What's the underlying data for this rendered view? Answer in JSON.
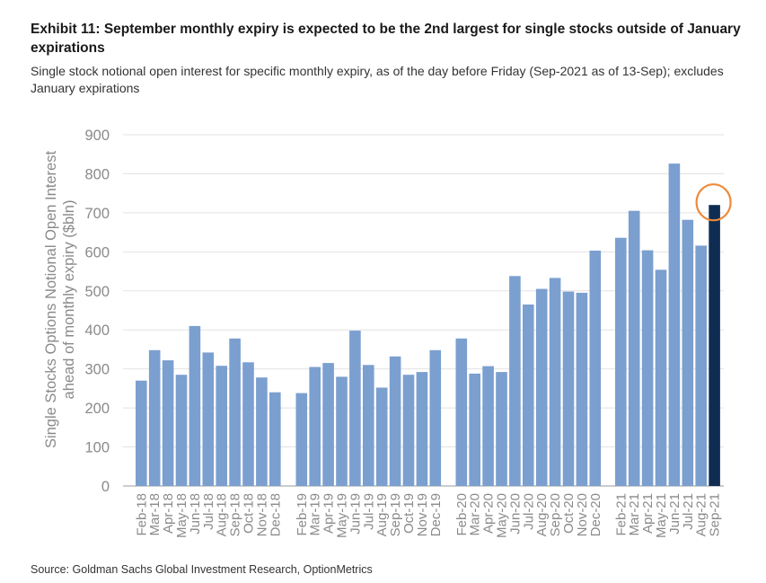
{
  "header": {
    "title": "Exhibit 11: September monthly expiry is expected to be the 2nd largest for single stocks outside of January expirations",
    "subtitle": "Single stock notional open interest for specific monthly expiry, as of the day before Friday (Sep-2021 as of 13-Sep); excludes January expirations"
  },
  "footer": {
    "source": "Source: Goldman Sachs Global Investment Research, OptionMetrics"
  },
  "colors": {
    "bar": "#7b9fcf",
    "highlight_bar": "#0f2d52",
    "circle": "#ee8a3a",
    "grid": "#e2e2e2",
    "axis": "#9a9a9a"
  },
  "chart_data": {
    "type": "bar",
    "title": "",
    "ylabel_lines": [
      "Single Stocks Options Notional Open Interest",
      "ahead of monthly expiry ($bln)"
    ],
    "ylim": [
      0,
      900
    ],
    "yticks": [
      0,
      100,
      200,
      300,
      400,
      500,
      600,
      700,
      800,
      900
    ],
    "grid": true,
    "highlight": "Sep-21",
    "groups": [
      {
        "categories": [
          "Feb-18",
          "Mar-18",
          "Apr-18",
          "May-18",
          "Jun-18",
          "Jul-18",
          "Aug-18",
          "Sep-18",
          "Oct-18",
          "Nov-18",
          "Dec-18"
        ],
        "values": [
          270,
          348,
          322,
          285,
          410,
          342,
          308,
          378,
          317,
          278,
          240
        ]
      },
      {
        "categories": [
          "Feb-19",
          "Mar-19",
          "Apr-19",
          "May-19",
          "Jun-19",
          "Jul-19",
          "Aug-19",
          "Sep-19",
          "Oct-19",
          "Nov-19",
          "Dec-19"
        ],
        "values": [
          238,
          305,
          315,
          280,
          398,
          310,
          252,
          332,
          285,
          292,
          348
        ]
      },
      {
        "categories": [
          "Feb-20",
          "Mar-20",
          "Apr-20",
          "May-20",
          "Jun-20",
          "Jul-20",
          "Aug-20",
          "Sep-20",
          "Oct-20",
          "Nov-20",
          "Dec-20"
        ],
        "values": [
          378,
          288,
          307,
          292,
          538,
          465,
          505,
          533,
          498,
          495,
          603
        ]
      },
      {
        "categories": [
          "Feb-21",
          "Mar-21",
          "Apr-21",
          "May-21",
          "Jun-21",
          "Jul-21",
          "Aug-21",
          "Sep-21"
        ],
        "values": [
          636,
          705,
          604,
          554,
          826,
          682,
          616,
          720
        ]
      }
    ]
  }
}
